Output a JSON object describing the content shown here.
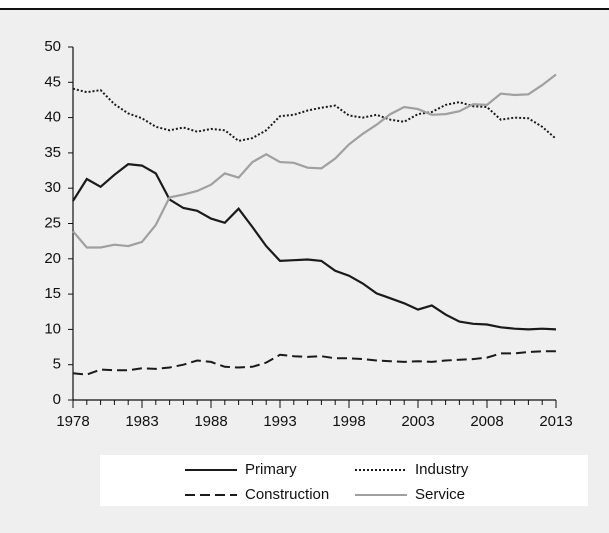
{
  "chart_data": {
    "type": "line",
    "x": [
      1978,
      1979,
      1980,
      1981,
      1982,
      1983,
      1984,
      1985,
      1986,
      1987,
      1988,
      1989,
      1990,
      1991,
      1992,
      1993,
      1994,
      1995,
      1996,
      1997,
      1998,
      1999,
      2000,
      2001,
      2002,
      2003,
      2004,
      2005,
      2006,
      2007,
      2008,
      2009,
      2010,
      2011,
      2012,
      2013
    ],
    "series": [
      {
        "name": "Primary",
        "color": "#1a1a1a",
        "dash": "solid",
        "values": [
          28.2,
          31.3,
          30.2,
          31.9,
          33.4,
          33.2,
          32.1,
          28.4,
          27.2,
          26.8,
          25.7,
          25.1,
          27.1,
          24.5,
          21.8,
          19.7,
          19.8,
          19.9,
          19.7,
          18.3,
          17.6,
          16.5,
          15.1,
          14.4,
          13.7,
          12.8,
          13.4,
          12.1,
          11.1,
          10.8,
          10.7,
          10.3,
          10.1,
          10.0,
          10.1,
          10.0
        ]
      },
      {
        "name": "Industry",
        "color": "#1a1a1a",
        "dash": "dotted",
        "values": [
          44.1,
          43.6,
          43.9,
          41.9,
          40.6,
          39.9,
          38.7,
          38.2,
          38.6,
          38.0,
          38.4,
          38.2,
          36.7,
          37.1,
          38.2,
          40.2,
          40.4,
          41.0,
          41.4,
          41.7,
          40.3,
          40.0,
          40.4,
          39.7,
          39.4,
          40.5,
          40.8,
          41.8,
          42.2,
          41.6,
          41.5,
          39.7,
          40.0,
          39.9,
          38.7,
          37.0
        ]
      },
      {
        "name": "Construction",
        "color": "#1a1a1a",
        "dash": "dashed",
        "values": [
          3.8,
          3.6,
          4.3,
          4.2,
          4.2,
          4.5,
          4.4,
          4.6,
          5.0,
          5.6,
          5.4,
          4.7,
          4.6,
          4.7,
          5.3,
          6.4,
          6.2,
          6.1,
          6.2,
          5.9,
          5.9,
          5.8,
          5.6,
          5.5,
          5.4,
          5.5,
          5.4,
          5.6,
          5.7,
          5.8,
          6.0,
          6.6,
          6.6,
          6.8,
          6.9,
          6.9
        ]
      },
      {
        "name": "Service",
        "color": "#a0a0a0",
        "dash": "solid",
        "values": [
          23.9,
          21.6,
          21.6,
          22.0,
          21.8,
          22.4,
          24.8,
          28.7,
          29.1,
          29.6,
          30.5,
          32.1,
          31.5,
          33.7,
          34.8,
          33.7,
          33.6,
          32.9,
          32.8,
          34.2,
          36.2,
          37.7,
          39.0,
          40.5,
          41.5,
          41.2,
          40.4,
          40.5,
          40.9,
          41.9,
          41.8,
          43.4,
          43.2,
          43.3,
          44.6,
          46.1
        ]
      }
    ],
    "xlim": [
      1978,
      2013
    ],
    "xticks": [
      1978,
      1983,
      1988,
      1993,
      1998,
      2003,
      2008,
      2013
    ],
    "ylim": [
      0,
      50
    ],
    "yticks": [
      0,
      5,
      10,
      15,
      20,
      25,
      30,
      35,
      40,
      45,
      50
    ],
    "grid": false,
    "legend": "bottom"
  }
}
